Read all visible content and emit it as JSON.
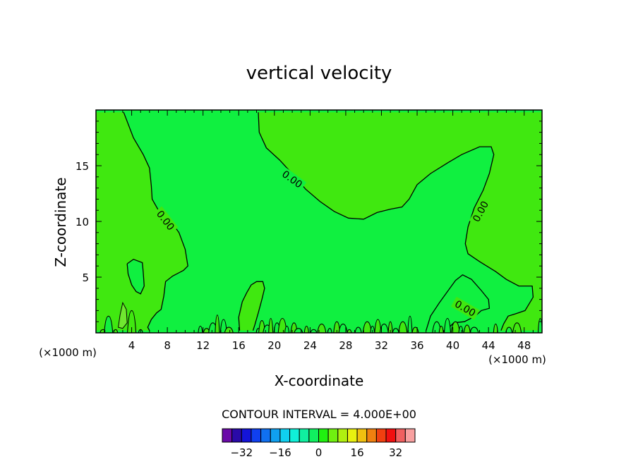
{
  "chart_data": {
    "type": "contour",
    "title": "vertical velocity",
    "xlabel": "X-coordinate",
    "ylabel": "Z-coordinate",
    "x_unit_label": "(×1000 m)",
    "y_unit_label": "(×1000 m)",
    "xlim": [
      0,
      50
    ],
    "ylim": [
      0,
      20
    ],
    "x_ticks": [
      4,
      8,
      12,
      16,
      20,
      24,
      28,
      32,
      36,
      40,
      44,
      48
    ],
    "y_ticks": [
      5,
      10,
      15
    ],
    "contour_interval_text": "CONTOUR INTERVAL = 4.000E+00",
    "contour_label": "0.00",
    "colorbar": {
      "ticks": [
        -32,
        -16,
        0,
        16,
        32
      ],
      "levels": [
        -36,
        -32,
        -28,
        -24,
        -20,
        -16,
        -12,
        -8,
        -4,
        0,
        4,
        8,
        12,
        16,
        20,
        24,
        28,
        32,
        36
      ],
      "colors": [
        "#6a0aa8",
        "#2a0aa8",
        "#1414d8",
        "#1040f0",
        "#1070f0",
        "#10a0f0",
        "#10d0f0",
        "#10f0d8",
        "#10f0a0",
        "#10f060",
        "#20f010",
        "#70f010",
        "#b0f010",
        "#e8f010",
        "#f0c010",
        "#f08010",
        "#f04010",
        "#f01010",
        "#f06060",
        "#f8a0a0"
      ]
    },
    "regions": {
      "negative_color": "#10f040",
      "positive_color": "#40e810",
      "pocket_color": "#70e830"
    },
    "zero_contours": [
      {
        "name": "left-boundary",
        "points": [
          [
            3.1,
            19.8
          ],
          [
            4.2,
            17.5
          ],
          [
            5.3,
            16.0
          ],
          [
            6.0,
            14.8
          ],
          [
            6.2,
            13.2
          ],
          [
            6.3,
            12.0
          ],
          [
            7.0,
            11.0
          ],
          [
            8.2,
            10.2
          ],
          [
            9.3,
            9.0
          ],
          [
            10.0,
            7.5
          ],
          [
            10.3,
            6.0
          ],
          [
            9.8,
            5.6
          ],
          [
            8.6,
            5.1
          ],
          [
            7.8,
            4.6
          ],
          [
            7.6,
            3.3
          ],
          [
            7.3,
            2.1
          ],
          [
            6.8,
            1.8
          ],
          [
            6.2,
            1.2
          ],
          [
            5.8,
            0.5
          ],
          [
            6.0,
            0.2
          ]
        ]
      },
      {
        "name": "central-lobe",
        "points": [
          [
            18.2,
            19.8
          ],
          [
            18.3,
            18.0
          ],
          [
            19.1,
            16.6
          ],
          [
            20.6,
            15.5
          ],
          [
            22.2,
            14.1
          ],
          [
            23.5,
            12.9
          ],
          [
            25.1,
            11.8
          ],
          [
            26.7,
            10.9
          ],
          [
            28.3,
            10.3
          ],
          [
            30.0,
            10.2
          ],
          [
            31.5,
            10.8
          ],
          [
            33.0,
            11.1
          ],
          [
            34.3,
            11.3
          ],
          [
            35.1,
            12.0
          ],
          [
            36.0,
            13.3
          ],
          [
            37.5,
            14.3
          ],
          [
            39.5,
            15.3
          ],
          [
            41.0,
            16.0
          ],
          [
            43.0,
            16.7
          ],
          [
            44.3,
            16.7
          ],
          [
            44.6,
            16.0
          ],
          [
            44.1,
            14.3
          ],
          [
            43.4,
            12.8
          ],
          [
            42.4,
            11.2
          ],
          [
            41.7,
            9.5
          ],
          [
            41.4,
            8.0
          ],
          [
            41.7,
            7.1
          ],
          [
            43.0,
            6.4
          ],
          [
            44.8,
            5.5
          ],
          [
            46.0,
            4.8
          ],
          [
            47.4,
            4.2
          ],
          [
            48.9,
            4.2
          ],
          [
            49.0,
            3.2
          ],
          [
            48.1,
            2.0
          ],
          [
            47.0,
            1.7
          ],
          [
            46.2,
            1.5
          ],
          [
            45.7,
            0.8
          ],
          [
            45.4,
            0.2
          ]
        ]
      },
      {
        "name": "lower-right-pocket",
        "points": [
          [
            37.0,
            0.2
          ],
          [
            37.5,
            1.5
          ],
          [
            38.5,
            2.7
          ],
          [
            39.3,
            3.6
          ],
          [
            40.3,
            4.7
          ],
          [
            41.1,
            5.2
          ],
          [
            42.1,
            4.8
          ],
          [
            43.2,
            3.8
          ],
          [
            44.0,
            3.0
          ],
          [
            44.1,
            2.2
          ],
          [
            43.2,
            2.0
          ],
          [
            42.5,
            1.5
          ],
          [
            41.3,
            1.0
          ],
          [
            40.1,
            0.9
          ],
          [
            39.6,
            0.5
          ],
          [
            39.3,
            0.2
          ]
        ]
      },
      {
        "name": "left-island",
        "points": [
          [
            3.5,
            6.2
          ],
          [
            4.2,
            6.6
          ],
          [
            5.2,
            6.3
          ],
          [
            5.3,
            5.4
          ],
          [
            5.4,
            4.2
          ],
          [
            5.0,
            3.5
          ],
          [
            4.5,
            3.7
          ],
          [
            4.0,
            4.3
          ],
          [
            3.6,
            5.3
          ],
          [
            3.5,
            6.2
          ]
        ]
      },
      {
        "name": "central-plume",
        "points": [
          [
            16.1,
            0.2
          ],
          [
            16.0,
            1.4
          ],
          [
            16.4,
            2.8
          ],
          [
            16.9,
            3.6
          ],
          [
            17.4,
            4.3
          ],
          [
            18.0,
            4.6
          ],
          [
            18.7,
            4.6
          ],
          [
            18.9,
            4.0
          ],
          [
            18.6,
            3.0
          ],
          [
            18.2,
            1.8
          ],
          [
            17.8,
            0.7
          ],
          [
            17.6,
            0.2
          ]
        ]
      }
    ],
    "pockets": [
      {
        "name": "left-pocket",
        "points": [
          [
            2.5,
            0.5
          ],
          [
            2.7,
            1.6
          ],
          [
            3.0,
            2.7
          ],
          [
            3.4,
            2.1
          ],
          [
            3.5,
            0.9
          ],
          [
            3.0,
            0.4
          ],
          [
            2.5,
            0.5
          ]
        ]
      }
    ],
    "contour_label_positions": [
      {
        "x": 7.8,
        "y": 10.1,
        "angle": 52
      },
      {
        "x": 22.0,
        "y": 13.8,
        "angle": 36
      },
      {
        "x": 43.1,
        "y": 10.9,
        "angle": -62
      },
      {
        "x": 41.4,
        "y": 2.2,
        "angle": 30
      }
    ],
    "surface_perturbations": [
      [
        11.7,
        0.6
      ],
      [
        12.4,
        0.4
      ],
      [
        13.1,
        0.9
      ],
      [
        13.6,
        1.6
      ],
      [
        14.3,
        1.2
      ],
      [
        14.9,
        0.5
      ],
      [
        18.2,
        0.4
      ],
      [
        18.6,
        1.1
      ],
      [
        19.2,
        0.7
      ],
      [
        19.6,
        1.3
      ],
      [
        20.3,
        0.9
      ],
      [
        20.9,
        1.3
      ],
      [
        21.4,
        0.6
      ],
      [
        22.2,
        0.9
      ],
      [
        22.7,
        0.4
      ],
      [
        23.6,
        0.6
      ],
      [
        24.4,
        0.3
      ],
      [
        25.3,
        0.8
      ],
      [
        26.2,
        0.4
      ],
      [
        27.0,
        1.0
      ],
      [
        27.7,
        0.8
      ],
      [
        28.4,
        0.3
      ],
      [
        29.4,
        0.5
      ],
      [
        30.4,
        1.0
      ],
      [
        31.0,
        0.6
      ],
      [
        31.6,
        1.2
      ],
      [
        32.3,
        0.8
      ],
      [
        33.0,
        1.0
      ],
      [
        33.6,
        0.4
      ],
      [
        34.4,
        1.0
      ],
      [
        35.2,
        1.5
      ],
      [
        35.8,
        0.5
      ],
      [
        38.2,
        1.0
      ],
      [
        38.7,
        0.6
      ],
      [
        39.4,
        1.3
      ],
      [
        40.3,
        1.0
      ],
      [
        40.9,
        0.6
      ],
      [
        41.6,
        0.7
      ],
      [
        42.4,
        0.5
      ],
      [
        44.8,
        0.8
      ],
      [
        46.3,
        0.5
      ],
      [
        47.2,
        0.9
      ],
      [
        49.8,
        1.3
      ],
      [
        0.8,
        0.3
      ],
      [
        1.4,
        1.5
      ],
      [
        2.2,
        0.3
      ],
      [
        4.1,
        0.8
      ],
      [
        4.0,
        2.0
      ],
      [
        5.0,
        0.3
      ]
    ]
  }
}
